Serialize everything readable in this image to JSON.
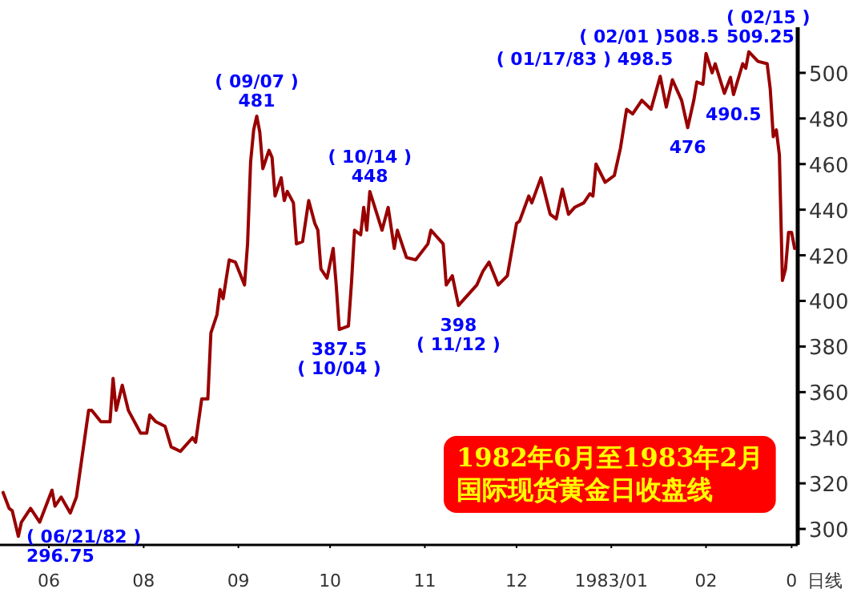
{
  "chart_data": {
    "type": "line",
    "x": [
      "1982-06-16",
      "1982-06-18",
      "1982-06-19",
      "1982-06-21",
      "1982-06-22",
      "1982-06-25",
      "1982-06-28",
      "1982-07-02",
      "1982-07-03",
      "1982-07-05",
      "1982-07-08",
      "1982-07-10",
      "1982-07-14",
      "1982-07-15",
      "1982-07-18",
      "1982-07-21",
      "1982-07-22",
      "1982-07-23",
      "1982-07-25",
      "1982-07-27",
      "1982-07-31",
      "1982-08-02",
      "1982-08-03",
      "1982-08-05",
      "1982-08-08",
      "1982-08-10",
      "1982-08-13",
      "1982-08-17",
      "1982-08-18",
      "1982-08-20",
      "1982-08-22",
      "1982-08-23",
      "1982-08-25",
      "1982-08-26",
      "1982-08-27",
      "1982-08-29",
      "1982-08-31",
      "1982-09-03",
      "1982-09-04",
      "1982-09-05",
      "1982-09-06",
      "1982-09-07",
      "1982-09-08",
      "1982-09-09",
      "1982-09-11",
      "1982-09-12",
      "1982-09-13",
      "1982-09-15",
      "1982-09-16",
      "1982-09-17",
      "1982-09-19",
      "1982-09-20",
      "1982-09-22",
      "1982-09-24",
      "1982-09-26",
      "1982-09-27",
      "1982-09-28",
      "1982-09-30",
      "1982-10-02",
      "1982-10-03",
      "1982-10-04",
      "1982-10-07",
      "1982-10-08",
      "1982-10-09",
      "1982-10-11",
      "1982-10-12",
      "1982-10-13",
      "1982-10-14",
      "1982-10-18",
      "1982-10-20",
      "1982-10-22",
      "1982-10-23",
      "1982-10-26",
      "1982-10-29",
      "1982-11-02",
      "1982-11-03",
      "1982-11-07",
      "1982-11-08",
      "1982-11-10",
      "1982-11-12",
      "1982-11-18",
      "1982-11-20",
      "1982-11-22",
      "1982-11-25",
      "1982-11-28",
      "1982-12-01",
      "1982-12-02",
      "1982-12-05",
      "1982-12-06",
      "1982-12-09",
      "1982-12-12",
      "1982-12-14",
      "1982-12-16",
      "1982-12-18",
      "1982-12-20",
      "1982-12-23",
      "1982-12-25",
      "1982-12-26",
      "1982-12-27",
      "1982-12-30",
      "1983-01-02",
      "1983-01-04",
      "1983-01-06",
      "1983-01-08",
      "1983-01-11",
      "1983-01-14",
      "1983-01-17",
      "1983-01-19",
      "1983-01-21",
      "1983-01-24",
      "1983-01-26",
      "1983-01-28",
      "1983-01-29",
      "1983-01-31",
      "1983-02-01",
      "1983-02-03",
      "1983-02-04",
      "1983-02-07",
      "1983-02-09",
      "1983-02-10",
      "1983-02-13",
      "1983-02-14",
      "1983-02-15",
      "1983-02-18",
      "1983-02-21",
      "1983-02-22",
      "1983-02-23",
      "1983-02-24",
      "1983-02-25",
      "1983-02-26",
      "1983-02-27",
      "1983-02-28",
      "1983-03-01",
      "1983-03-02"
    ],
    "series": [
      {
        "color": "#990000",
        "values": [
          316,
          309,
          308,
          296.75,
          303,
          309,
          303,
          317,
          310,
          314,
          307,
          314,
          352,
          352,
          347,
          347,
          366,
          352,
          363,
          352,
          342,
          342,
          350,
          347,
          345,
          336,
          334,
          340,
          338,
          357,
          357,
          386,
          394,
          405,
          401,
          418,
          417,
          407,
          425,
          461,
          475,
          481,
          474,
          458,
          466,
          463,
          446,
          454,
          444,
          448,
          443,
          425,
          426,
          444,
          434,
          431,
          414,
          410,
          423,
          407,
          387.5,
          389,
          408,
          431,
          429,
          441,
          431,
          448,
          431,
          441,
          423,
          431,
          419,
          418,
          425,
          431,
          425,
          407,
          411,
          398,
          407,
          413,
          417,
          407,
          411,
          434,
          435,
          446,
          443,
          454,
          438,
          436,
          449,
          438,
          441,
          443,
          447,
          446,
          460,
          452,
          455,
          467,
          484,
          482,
          488,
          484,
          498.5,
          485,
          497,
          488,
          476,
          488,
          496,
          495,
          508.5,
          500,
          504,
          491,
          498,
          490.5,
          504,
          502,
          509.25,
          505,
          504,
          493,
          472,
          475,
          464,
          409,
          414,
          430,
          430,
          423
        ]
      }
    ],
    "xlim": [
      "1982-06-15",
      "1983-03-03"
    ],
    "xticks": [
      {
        "value": "1982-07-01",
        "label": "06"
      },
      {
        "value": "1982-08-01",
        "label": "08"
      },
      {
        "value": "1982-09-01",
        "label": "09"
      },
      {
        "value": "1982-10-01",
        "label": "10"
      },
      {
        "value": "1982-11-01",
        "label": "11"
      },
      {
        "value": "1982-12-01",
        "label": "12"
      },
      {
        "value": "1983-01-01",
        "label": "1983/01"
      },
      {
        "value": "1983-02-01",
        "label": "02"
      },
      {
        "value": "1983-03-01",
        "label": "0"
      }
    ],
    "xlabel": "日线",
    "ylim": [
      293,
      520
    ],
    "yticks": [
      300,
      320,
      340,
      360,
      380,
      400,
      420,
      440,
      460,
      480,
      500
    ],
    "annotations": [
      {
        "text": "( 06/21/82 )",
        "x": "1982-06-21",
        "y": 296.75
      },
      {
        "text": "296.75",
        "x": "1982-06-21",
        "y": 296.75
      },
      {
        "text": "( 09/07 )",
        "x": "1982-09-07",
        "y": 481
      },
      {
        "text": "481",
        "x": "1982-09-07",
        "y": 481
      },
      {
        "text": "387.5",
        "x": "1982-10-04",
        "y": 387.5
      },
      {
        "text": "( 10/04 )",
        "x": "1982-10-04",
        "y": 387.5
      },
      {
        "text": "( 10/14 )",
        "x": "1982-10-14",
        "y": 448
      },
      {
        "text": "448",
        "x": "1982-10-14",
        "y": 448
      },
      {
        "text": "398",
        "x": "1982-11-12",
        "y": 398
      },
      {
        "text": "( 11/12 )",
        "x": "1982-11-12",
        "y": 398
      },
      {
        "text": "( 01/17/83 ) 498.5",
        "x": "1983-01-17",
        "y": 498.5
      },
      {
        "text": "476",
        "x": "1983-01-26",
        "y": 476
      },
      {
        "text": "( 02/01 )508.5",
        "x": "1983-02-01",
        "y": 508.5
      },
      {
        "text": "490.5",
        "x": "1983-02-10",
        "y": 490.5
      },
      {
        "text": "( 02/15 )",
        "x": "1983-02-15",
        "y": 509.25
      },
      {
        "text": "509.25",
        "x": "1983-02-15",
        "y": 509.25
      },
      "1982年6月至1983年2月",
      "国际现货黄金日收盘线"
    ]
  }
}
